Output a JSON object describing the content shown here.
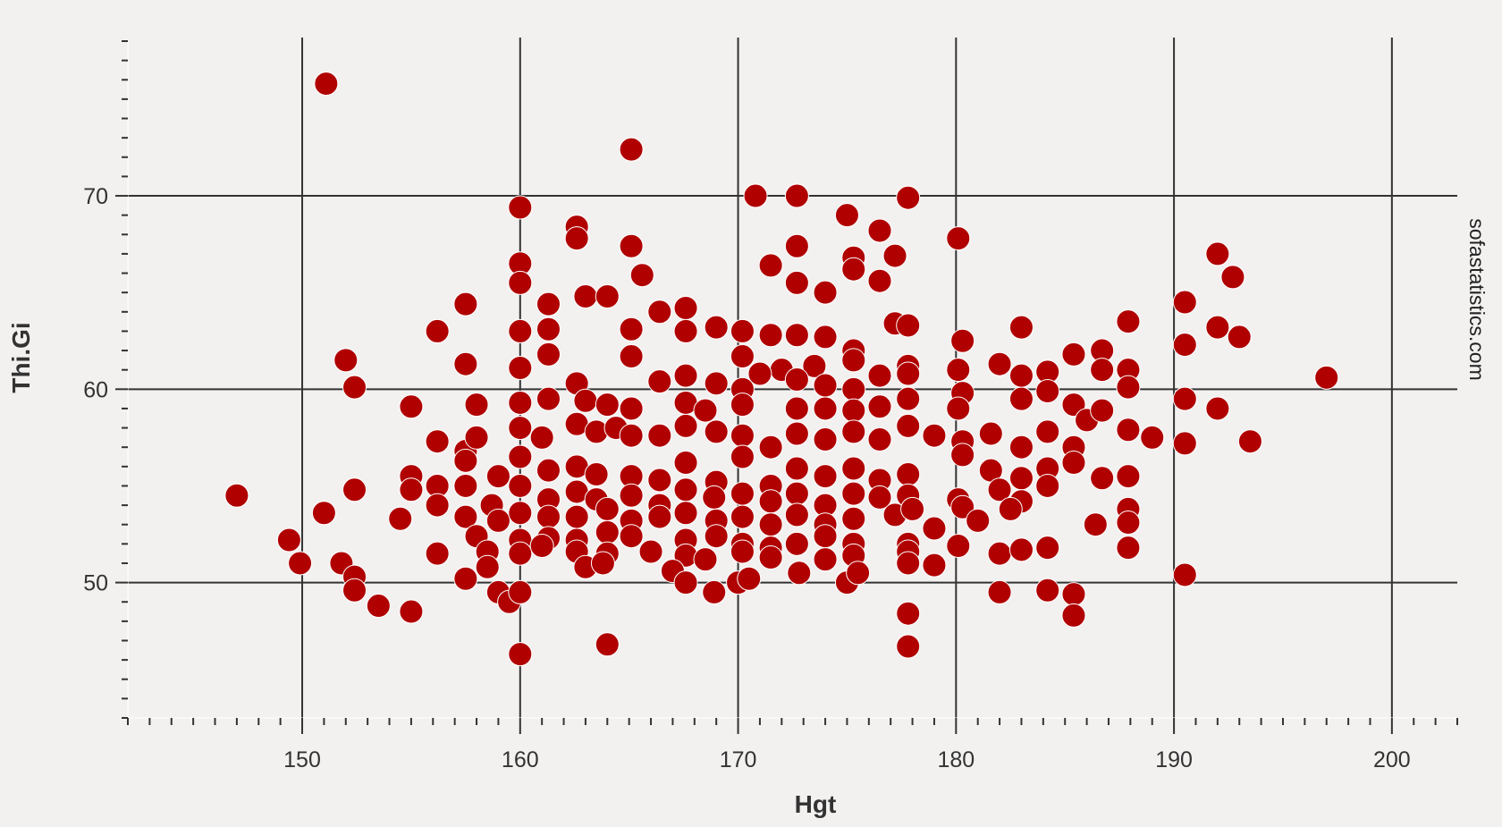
{
  "chart_data": {
    "type": "scatter",
    "title": "",
    "xlabel": "Hgt",
    "ylabel": "Thi.Gi",
    "watermark": "sofastatistics.com",
    "xlim": [
      142,
      203
    ],
    "ylim": [
      43,
      78
    ],
    "x_ticks": [
      150,
      160,
      170,
      180,
      190,
      200
    ],
    "y_ticks": [
      50,
      60,
      70
    ],
    "x_minor_step": 1,
    "y_minor_step": 1,
    "grid": true,
    "colors": {
      "marker": "#b00000",
      "marker_edge": "#ffffff",
      "gridline": "#333333",
      "background": "#f3f1f0"
    },
    "points": [
      [
        151.1,
        75.8
      ],
      [
        165.1,
        72.4
      ],
      [
        160.0,
        69.4
      ],
      [
        170.8,
        70.0
      ],
      [
        172.7,
        70.0
      ],
      [
        177.8,
        69.9
      ],
      [
        175.0,
        69.0
      ],
      [
        162.6,
        68.4
      ],
      [
        162.6,
        67.8
      ],
      [
        176.5,
        68.2
      ],
      [
        180.1,
        67.8
      ],
      [
        165.1,
        67.4
      ],
      [
        172.7,
        67.4
      ],
      [
        177.2,
        66.9
      ],
      [
        175.3,
        66.8
      ],
      [
        175.3,
        66.2
      ],
      [
        160.0,
        66.5
      ],
      [
        160.0,
        65.5
      ],
      [
        171.5,
        66.4
      ],
      [
        165.6,
        65.9
      ],
      [
        172.7,
        65.5
      ],
      [
        176.5,
        65.6
      ],
      [
        192.0,
        67.0
      ],
      [
        192.7,
        65.8
      ],
      [
        163.0,
        64.8
      ],
      [
        164.0,
        64.8
      ],
      [
        174.0,
        65.0
      ],
      [
        190.5,
        64.5
      ],
      [
        157.5,
        64.4
      ],
      [
        161.3,
        64.4
      ],
      [
        166.4,
        64.0
      ],
      [
        167.6,
        64.2
      ],
      [
        161.3,
        63.1
      ],
      [
        160.0,
        63.0
      ],
      [
        156.2,
        63.0
      ],
      [
        165.1,
        63.1
      ],
      [
        167.6,
        63.0
      ],
      [
        169.0,
        63.2
      ],
      [
        170.2,
        63.0
      ],
      [
        171.5,
        62.8
      ],
      [
        172.7,
        62.8
      ],
      [
        174.0,
        62.7
      ],
      [
        175.3,
        62.0
      ],
      [
        177.2,
        63.4
      ],
      [
        177.8,
        63.3
      ],
      [
        180.3,
        62.5
      ],
      [
        183.0,
        63.2
      ],
      [
        187.9,
        63.5
      ],
      [
        190.5,
        62.3
      ],
      [
        192.0,
        63.2
      ],
      [
        193.0,
        62.7
      ],
      [
        152.0,
        61.5
      ],
      [
        157.5,
        61.3
      ],
      [
        160.0,
        61.1
      ],
      [
        161.3,
        61.8
      ],
      [
        165.1,
        61.7
      ],
      [
        170.2,
        61.7
      ],
      [
        172.0,
        61.0
      ],
      [
        173.5,
        61.2
      ],
      [
        175.3,
        61.5
      ],
      [
        177.8,
        61.2
      ],
      [
        180.1,
        61.0
      ],
      [
        182.0,
        61.3
      ],
      [
        184.2,
        60.9
      ],
      [
        185.4,
        61.8
      ],
      [
        186.7,
        62.0
      ],
      [
        186.7,
        61.0
      ],
      [
        187.9,
        61.0
      ],
      [
        197.0,
        60.6
      ],
      [
        152.4,
        60.1
      ],
      [
        162.6,
        60.3
      ],
      [
        166.4,
        60.4
      ],
      [
        167.6,
        60.7
      ],
      [
        169.0,
        60.3
      ],
      [
        170.2,
        60.0
      ],
      [
        171.0,
        60.8
      ],
      [
        172.7,
        60.5
      ],
      [
        174.0,
        60.2
      ],
      [
        175.3,
        60.0
      ],
      [
        176.5,
        60.7
      ],
      [
        177.8,
        60.8
      ],
      [
        180.3,
        59.8
      ],
      [
        183.0,
        60.7
      ],
      [
        184.2,
        59.9
      ],
      [
        187.9,
        60.1
      ],
      [
        158.0,
        59.2
      ],
      [
        155.0,
        59.1
      ],
      [
        160.0,
        59.3
      ],
      [
        161.3,
        59.5
      ],
      [
        163.0,
        59.4
      ],
      [
        164.0,
        59.2
      ],
      [
        165.1,
        59.0
      ],
      [
        167.6,
        59.3
      ],
      [
        168.5,
        58.9
      ],
      [
        170.2,
        59.2
      ],
      [
        172.7,
        59.0
      ],
      [
        174.0,
        59.0
      ],
      [
        175.3,
        58.9
      ],
      [
        176.5,
        59.1
      ],
      [
        177.8,
        59.5
      ],
      [
        180.1,
        59.0
      ],
      [
        183.0,
        59.5
      ],
      [
        185.4,
        59.2
      ],
      [
        186.0,
        58.4
      ],
      [
        186.7,
        58.9
      ],
      [
        190.5,
        59.5
      ],
      [
        192.0,
        59.0
      ],
      [
        156.2,
        57.3
      ],
      [
        157.5,
        56.8
      ],
      [
        158.0,
        57.5
      ],
      [
        160.0,
        58.0
      ],
      [
        161.0,
        57.5
      ],
      [
        162.6,
        58.2
      ],
      [
        163.5,
        57.8
      ],
      [
        164.4,
        58.0
      ],
      [
        165.1,
        57.6
      ],
      [
        166.4,
        57.6
      ],
      [
        167.6,
        58.1
      ],
      [
        169.0,
        57.8
      ],
      [
        170.2,
        57.6
      ],
      [
        171.5,
        57.0
      ],
      [
        172.7,
        57.7
      ],
      [
        174.0,
        57.4
      ],
      [
        175.3,
        57.8
      ],
      [
        176.5,
        57.4
      ],
      [
        177.8,
        58.1
      ],
      [
        179.0,
        57.6
      ],
      [
        180.3,
        57.3
      ],
      [
        181.6,
        57.7
      ],
      [
        183.0,
        57.0
      ],
      [
        184.2,
        57.8
      ],
      [
        185.4,
        57.0
      ],
      [
        187.9,
        57.9
      ],
      [
        189.0,
        57.5
      ],
      [
        190.5,
        57.2
      ],
      [
        193.5,
        57.3
      ],
      [
        155.0,
        55.5
      ],
      [
        156.2,
        55.0
      ],
      [
        157.5,
        56.3
      ],
      [
        159.0,
        55.5
      ],
      [
        160.0,
        56.5
      ],
      [
        161.3,
        55.8
      ],
      [
        162.6,
        56.0
      ],
      [
        163.5,
        55.6
      ],
      [
        165.1,
        55.5
      ],
      [
        166.4,
        55.3
      ],
      [
        167.6,
        56.2
      ],
      [
        169.0,
        55.2
      ],
      [
        170.2,
        56.5
      ],
      [
        171.5,
        55.0
      ],
      [
        172.7,
        55.9
      ],
      [
        174.0,
        55.5
      ],
      [
        175.3,
        55.9
      ],
      [
        176.5,
        55.3
      ],
      [
        177.8,
        55.6
      ],
      [
        180.3,
        56.6
      ],
      [
        181.6,
        55.8
      ],
      [
        183.0,
        55.4
      ],
      [
        184.2,
        55.9
      ],
      [
        185.4,
        56.2
      ],
      [
        186.7,
        55.4
      ],
      [
        187.9,
        55.5
      ],
      [
        147.0,
        54.5
      ],
      [
        152.4,
        54.8
      ],
      [
        155.0,
        54.8
      ],
      [
        157.5,
        55.0
      ],
      [
        158.7,
        54.0
      ],
      [
        160.0,
        55.0
      ],
      [
        161.3,
        54.3
      ],
      [
        162.6,
        54.7
      ],
      [
        163.5,
        54.3
      ],
      [
        165.1,
        54.5
      ],
      [
        166.4,
        54.0
      ],
      [
        167.6,
        54.8
      ],
      [
        168.9,
        54.4
      ],
      [
        170.2,
        54.6
      ],
      [
        171.5,
        54.2
      ],
      [
        172.7,
        54.6
      ],
      [
        174.0,
        54.0
      ],
      [
        175.3,
        54.6
      ],
      [
        176.5,
        54.4
      ],
      [
        177.8,
        54.5
      ],
      [
        180.1,
        54.3
      ],
      [
        182.0,
        54.8
      ],
      [
        183.0,
        54.2
      ],
      [
        184.2,
        55.0
      ],
      [
        151.0,
        53.6
      ],
      [
        154.5,
        53.3
      ],
      [
        156.2,
        54.0
      ],
      [
        157.5,
        53.4
      ],
      [
        159.0,
        53.2
      ],
      [
        160.0,
        53.6
      ],
      [
        161.3,
        53.4
      ],
      [
        162.6,
        53.4
      ],
      [
        164.0,
        53.8
      ],
      [
        165.1,
        53.2
      ],
      [
        166.4,
        53.4
      ],
      [
        167.6,
        53.6
      ],
      [
        169.0,
        53.2
      ],
      [
        170.2,
        53.4
      ],
      [
        171.5,
        53.0
      ],
      [
        172.7,
        53.5
      ],
      [
        174.0,
        53.0
      ],
      [
        175.3,
        53.3
      ],
      [
        177.2,
        53.5
      ],
      [
        178.0,
        53.8
      ],
      [
        180.3,
        53.9
      ],
      [
        181.0,
        53.2
      ],
      [
        182.5,
        53.8
      ],
      [
        187.9,
        53.8
      ],
      [
        186.4,
        53.0
      ],
      [
        187.9,
        53.1
      ],
      [
        149.4,
        52.2
      ],
      [
        158.0,
        52.4
      ],
      [
        160.0,
        52.2
      ],
      [
        161.3,
        52.3
      ],
      [
        162.6,
        52.2
      ],
      [
        164.0,
        52.6
      ],
      [
        165.1,
        52.4
      ],
      [
        167.6,
        52.2
      ],
      [
        169.0,
        52.4
      ],
      [
        170.2,
        52.0
      ],
      [
        171.5,
        51.8
      ],
      [
        172.7,
        52.0
      ],
      [
        174.0,
        52.4
      ],
      [
        175.3,
        52.0
      ],
      [
        177.8,
        52.0
      ],
      [
        179.0,
        52.8
      ],
      [
        180.1,
        51.9
      ],
      [
        156.2,
        51.5
      ],
      [
        158.5,
        51.6
      ],
      [
        160.0,
        51.5
      ],
      [
        161.0,
        51.9
      ],
      [
        162.6,
        51.6
      ],
      [
        164.0,
        51.5
      ],
      [
        166.0,
        51.6
      ],
      [
        167.6,
        51.4
      ],
      [
        168.5,
        51.2
      ],
      [
        170.2,
        51.6
      ],
      [
        171.5,
        51.3
      ],
      [
        174.0,
        51.2
      ],
      [
        175.3,
        51.4
      ],
      [
        177.8,
        51.6
      ],
      [
        182.0,
        51.5
      ],
      [
        183.0,
        51.7
      ],
      [
        184.2,
        51.8
      ],
      [
        187.9,
        51.8
      ],
      [
        149.9,
        51.0
      ],
      [
        151.8,
        51.0
      ],
      [
        152.4,
        50.3
      ],
      [
        157.5,
        50.2
      ],
      [
        158.5,
        50.8
      ],
      [
        163.0,
        50.8
      ],
      [
        163.8,
        51.0
      ],
      [
        167.0,
        50.6
      ],
      [
        167.6,
        50.0
      ],
      [
        170.0,
        50.0
      ],
      [
        170.5,
        50.2
      ],
      [
        172.8,
        50.5
      ],
      [
        175.0,
        50.0
      ],
      [
        175.5,
        50.5
      ],
      [
        177.8,
        51.0
      ],
      [
        179.0,
        50.9
      ],
      [
        190.5,
        50.4
      ],
      [
        152.4,
        49.6
      ],
      [
        153.5,
        48.8
      ],
      [
        155.0,
        48.5
      ],
      [
        159.0,
        49.5
      ],
      [
        159.5,
        49.0
      ],
      [
        160.0,
        49.5
      ],
      [
        168.9,
        49.5
      ],
      [
        182.0,
        49.5
      ],
      [
        184.2,
        49.6
      ],
      [
        185.4,
        49.4
      ],
      [
        185.4,
        48.3
      ],
      [
        177.8,
        48.4
      ],
      [
        160.0,
        46.3
      ],
      [
        164.0,
        46.8
      ],
      [
        177.8,
        46.7
      ]
    ]
  }
}
